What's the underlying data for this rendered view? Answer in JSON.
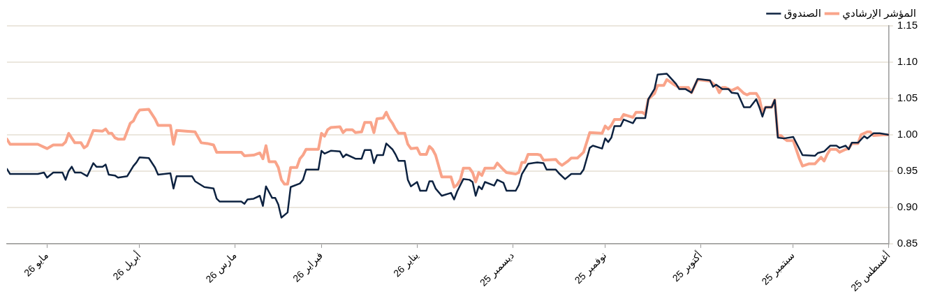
{
  "chart_data": {
    "type": "line",
    "legend": "top right",
    "grid": "y",
    "marker": "none",
    "line_style": "solid",
    "xlim": [
      "2026-05-14",
      "2025-08-01"
    ],
    "xticks": [
      {
        "value": "2025-08-01",
        "label": "أغسطس 25"
      },
      {
        "value": "2025-09-01",
        "label": "سبتمبر 25"
      },
      {
        "value": "2025-10-01",
        "label": "أكتوبر 25"
      },
      {
        "value": "2025-11-01",
        "label": "نوفمبر 25"
      },
      {
        "value": "2025-12-01",
        "label": "ديسمبر 25"
      },
      {
        "value": "2026-01-01",
        "label": "يناير 26"
      },
      {
        "value": "2026-02-01",
        "label": "فبراير 26"
      },
      {
        "value": "2026-03-01",
        "label": "مارس 26"
      },
      {
        "value": "2026-04-01",
        "label": "أبريل 26"
      },
      {
        "value": "2026-05-01",
        "label": "مايو 26"
      }
    ],
    "ylim": [
      0.85,
      1.15
    ],
    "yticks": [
      {
        "value": 0.85,
        "label": "0.85"
      },
      {
        "value": 0.9,
        "label": "0.90"
      },
      {
        "value": 0.95,
        "label": "0.95"
      },
      {
        "value": 1,
        "label": "1.00"
      },
      {
        "value": 1.05,
        "label": "1.05"
      },
      {
        "value": 1.1,
        "label": "1.10"
      },
      {
        "value": 1.15,
        "label": "1.15"
      }
    ],
    "series": [
      {
        "name": "الصندوق",
        "color": "#0d2240",
        "x": [
          "2025-08-01",
          "2025-08-04",
          "2025-08-06",
          "2025-08-08",
          "2025-08-09",
          "2025-08-11",
          "2025-08-13",
          "2025-08-14",
          "2025-08-15",
          "2025-08-17",
          "2025-08-18",
          "2025-08-20",
          "2025-08-22",
          "2025-08-24",
          "2025-08-25",
          "2025-08-29",
          "2025-09-01",
          "2025-09-04",
          "2025-09-06",
          "2025-09-07",
          "2025-09-08",
          "2025-09-10",
          "2025-09-11",
          "2025-09-12",
          "2025-09-13",
          "2025-09-15",
          "2025-09-17",
          "2025-09-19",
          "2025-09-21",
          "2025-09-22",
          "2025-09-24",
          "2025-09-26",
          "2025-09-27",
          "2025-09-28",
          "2025-10-02",
          "2025-10-04",
          "2025-10-06",
          "2025-10-08",
          "2025-10-09",
          "2025-10-12",
          "2025-10-15",
          "2025-10-16",
          "2025-10-18",
          "2025-10-19",
          "2025-10-22",
          "2025-10-23",
          "2025-10-26",
          "2025-10-27",
          "2025-10-29",
          "2025-10-30",
          "2025-10-31",
          "2025-11-01",
          "2025-11-02",
          "2025-11-05",
          "2025-11-06",
          "2025-11-08",
          "2025-11-09",
          "2025-11-12",
          "2025-11-14",
          "2025-11-16",
          "2025-11-17",
          "2025-11-20",
          "2025-11-21",
          "2025-11-23",
          "2025-11-26",
          "2025-11-28",
          "2025-11-29",
          "2025-11-30",
          "2025-12-03",
          "2025-12-04",
          "2025-12-06",
          "2025-12-07",
          "2025-12-10",
          "2025-12-11",
          "2025-12-12",
          "2025-12-13",
          "2025-12-14",
          "2025-12-15",
          "2025-12-17",
          "2025-12-19",
          "2025-12-20",
          "2025-12-21",
          "2025-12-24",
          "2025-12-26",
          "2025-12-27",
          "2025-12-28",
          "2025-12-29",
          "2025-12-31",
          "2026-01-01",
          "2026-01-03",
          "2026-01-04",
          "2026-01-05",
          "2026-01-07",
          "2026-01-08",
          "2026-01-09",
          "2026-01-11",
          "2026-01-12",
          "2026-01-14",
          "2026-01-15",
          "2026-01-16",
          "2026-01-18",
          "2026-01-19",
          "2026-01-21",
          "2026-01-24",
          "2026-01-25",
          "2026-01-26",
          "2026-01-29",
          "2026-01-31",
          "2026-02-01",
          "2026-02-02",
          "2026-02-06",
          "2026-02-07",
          "2026-02-08",
          "2026-02-11",
          "2026-02-12",
          "2026-02-14",
          "2026-02-15",
          "2026-02-16",
          "2026-02-17",
          "2026-02-19",
          "2026-02-20",
          "2026-02-21",
          "2026-02-23",
          "2026-02-25",
          "2026-02-26",
          "2026-02-27",
          "2026-03-06",
          "2026-03-07",
          "2026-03-08",
          "2026-03-11",
          "2026-03-14",
          "2026-03-15",
          "2026-03-20",
          "2026-03-21",
          "2026-03-22",
          "2026-03-26",
          "2026-03-27",
          "2026-03-29",
          "2026-04-01",
          "2026-04-02",
          "2026-04-03",
          "2026-04-05",
          "2026-04-08",
          "2026-04-09",
          "2026-04-11",
          "2026-04-12",
          "2026-04-13",
          "2026-04-15",
          "2026-04-16",
          "2026-04-18",
          "2026-04-20",
          "2026-04-22",
          "2026-04-23",
          "2026-04-24",
          "2026-04-25",
          "2026-04-26",
          "2026-04-29",
          "2026-05-01",
          "2026-05-02",
          "2026-05-04",
          "2026-05-13",
          "2026-05-14"
        ],
        "values": [
          1.0,
          1.002,
          1.002,
          0.995,
          0.998,
          0.989,
          0.989,
          0.98,
          0.985,
          0.982,
          0.985,
          0.985,
          0.977,
          0.975,
          0.971,
          0.972,
          0.997,
          0.995,
          0.996,
          1.048,
          1.038,
          1.038,
          1.025,
          1.038,
          1.049,
          1.038,
          1.038,
          1.057,
          1.058,
          1.063,
          1.063,
          1.069,
          1.066,
          1.075,
          1.077,
          1.058,
          1.063,
          1.063,
          1.07,
          1.084,
          1.083,
          1.063,
          1.049,
          1.023,
          1.023,
          1.016,
          1.021,
          1.012,
          1.012,
          0.996,
          0.99,
          0.995,
          0.981,
          0.985,
          0.982,
          0.952,
          0.946,
          0.946,
          0.939,
          0.947,
          0.952,
          0.952,
          0.961,
          0.962,
          0.96,
          0.946,
          0.931,
          0.923,
          0.923,
          0.934,
          0.938,
          0.93,
          0.935,
          0.925,
          0.929,
          0.916,
          0.935,
          0.938,
          0.939,
          0.922,
          0.911,
          0.92,
          0.916,
          0.926,
          0.936,
          0.936,
          0.923,
          0.923,
          0.935,
          0.929,
          0.938,
          0.964,
          0.964,
          0.973,
          0.98,
          0.988,
          0.972,
          0.972,
          0.961,
          0.979,
          0.979,
          0.967,
          0.967,
          0.973,
          0.969,
          0.977,
          0.978,
          0.974,
          0.978,
          0.952,
          0.952,
          0.938,
          0.933,
          0.928,
          0.893,
          0.886,
          0.904,
          0.913,
          0.913,
          0.929,
          0.902,
          0.916,
          0.912,
          0.911,
          0.905,
          0.908,
          0.908,
          0.912,
          0.926,
          0.928,
          0.936,
          0.943,
          0.943,
          0.926,
          0.947,
          0.945,
          0.955,
          0.968,
          0.969,
          0.962,
          0.957,
          0.943,
          0.941,
          0.944,
          0.945,
          0.959,
          0.956,
          0.956,
          0.961,
          0.943,
          0.948,
          0.948,
          0.956,
          0.95,
          0.938,
          0.948,
          0.948,
          0.941,
          0.948,
          0.946,
          0.946,
          0.953
        ]
      },
      {
        "name": "المؤشر الإرشادي",
        "color": "#f9a48a",
        "x": [
          "2025-08-01",
          "2025-08-03",
          "2025-08-06",
          "2025-08-07",
          "2025-08-08",
          "2025-08-10",
          "2025-08-11",
          "2025-08-13",
          "2025-08-14",
          "2025-08-15",
          "2025-08-17",
          "2025-08-18",
          "2025-08-20",
          "2025-08-21",
          "2025-08-22",
          "2025-08-23",
          "2025-08-25",
          "2025-08-27",
          "2025-08-29",
          "2025-08-30",
          "2025-09-01",
          "2025-09-03",
          "2025-09-04",
          "2025-09-05",
          "2025-09-06",
          "2025-09-07",
          "2025-09-08",
          "2025-09-10",
          "2025-09-11",
          "2025-09-12",
          "2025-09-13",
          "2025-09-15",
          "2025-09-16",
          "2025-09-17",
          "2025-09-19",
          "2025-09-21",
          "2025-09-23",
          "2025-09-24",
          "2025-09-25",
          "2025-09-26",
          "2025-09-28",
          "2025-10-02",
          "2025-10-04",
          "2025-10-05",
          "2025-10-08",
          "2025-10-10",
          "2025-10-12",
          "2025-10-13",
          "2025-10-15",
          "2025-10-16",
          "2025-10-18",
          "2025-10-19",
          "2025-10-20",
          "2025-10-22",
          "2025-10-23",
          "2025-10-26",
          "2025-10-27",
          "2025-10-29",
          "2025-10-30",
          "2025-10-31",
          "2025-11-01",
          "2025-11-02",
          "2025-11-06",
          "2025-11-08",
          "2025-11-10",
          "2025-11-12",
          "2025-11-13",
          "2025-11-15",
          "2025-11-16",
          "2025-11-17",
          "2025-11-21",
          "2025-11-22",
          "2025-11-23",
          "2025-11-26",
          "2025-11-27",
          "2025-11-28",
          "2025-11-29",
          "2025-11-30",
          "2025-12-03",
          "2025-12-04",
          "2025-12-06",
          "2025-12-07",
          "2025-12-10",
          "2025-12-11",
          "2025-12-12",
          "2025-12-13",
          "2025-12-14",
          "2025-12-15",
          "2025-12-17",
          "2025-12-18",
          "2025-12-19",
          "2025-12-20",
          "2025-12-21",
          "2025-12-24",
          "2025-12-26",
          "2025-12-27",
          "2025-12-28",
          "2025-12-29",
          "2025-12-31",
          "2026-01-01",
          "2026-01-03",
          "2026-01-04",
          "2026-01-05",
          "2026-01-07",
          "2026-01-08",
          "2026-01-09",
          "2026-01-10",
          "2026-01-11",
          "2026-01-12",
          "2026-01-14",
          "2026-01-15",
          "2026-01-16",
          "2026-01-18",
          "2026-01-19",
          "2026-01-21",
          "2026-01-22",
          "2026-01-24",
          "2026-01-25",
          "2026-01-26",
          "2026-01-29",
          "2026-01-30",
          "2026-01-31",
          "2026-02-01",
          "2026-02-02",
          "2026-02-06",
          "2026-02-07",
          "2026-02-08",
          "2026-02-09",
          "2026-02-11",
          "2026-02-12",
          "2026-02-13",
          "2026-02-14",
          "2026-02-15",
          "2026-02-16",
          "2026-02-18",
          "2026-02-19",
          "2026-02-20",
          "2026-02-21",
          "2026-02-23",
          "2026-02-26",
          "2026-02-27",
          "2026-03-07",
          "2026-03-08",
          "2026-03-10",
          "2026-03-12",
          "2026-03-14",
          "2026-03-17",
          "2026-03-20",
          "2026-03-21",
          "2026-03-22",
          "2026-03-26",
          "2026-03-27",
          "2026-03-29",
          "2026-04-01",
          "2026-04-02",
          "2026-04-03",
          "2026-04-04",
          "2026-04-06",
          "2026-04-08",
          "2026-04-09",
          "2026-04-10",
          "2026-04-11",
          "2026-04-12",
          "2026-04-13",
          "2026-04-16",
          "2026-04-18",
          "2026-04-19",
          "2026-04-20",
          "2026-04-22",
          "2026-04-24",
          "2026-04-25",
          "2026-04-26",
          "2026-04-29",
          "2026-05-01",
          "2026-05-02",
          "2026-05-04",
          "2026-05-13",
          "2026-05-14"
        ],
        "values": [
          1.0,
          1.0,
          0.999,
          1.004,
          1.004,
          1.0,
          0.988,
          0.988,
          0.981,
          0.98,
          0.976,
          0.98,
          0.98,
          0.973,
          0.964,
          0.969,
          0.96,
          0.96,
          0.957,
          0.967,
          0.992,
          0.992,
          0.995,
          0.999,
          0.999,
          1.048,
          1.038,
          1.038,
          1.031,
          1.05,
          1.057,
          1.057,
          1.055,
          1.057,
          1.065,
          1.061,
          1.065,
          1.065,
          1.058,
          1.067,
          1.074,
          1.076,
          1.058,
          1.065,
          1.065,
          1.07,
          1.076,
          1.068,
          1.068,
          1.057,
          1.049,
          1.028,
          1.031,
          1.031,
          1.024,
          1.028,
          1.021,
          1.021,
          1.013,
          1.008,
          1.012,
          1.002,
          1.003,
          0.976,
          0.968,
          0.968,
          0.964,
          0.958,
          0.961,
          0.966,
          0.965,
          0.972,
          0.973,
          0.973,
          0.962,
          0.962,
          0.948,
          0.946,
          0.948,
          0.952,
          0.961,
          0.954,
          0.954,
          0.944,
          0.948,
          0.935,
          0.948,
          0.954,
          0.954,
          0.938,
          0.931,
          0.928,
          0.942,
          0.942,
          0.972,
          0.98,
          0.984,
          0.973,
          0.973,
          0.982,
          0.981,
          0.987,
          1.002,
          1.002,
          1.008,
          1.016,
          1.022,
          1.031,
          1.023,
          1.022,
          1.003,
          1.017,
          1.017,
          1.004,
          1.003,
          1.007,
          1.007,
          1.003,
          1.011,
          1.01,
          1.007,
          0.998,
          1.002,
          0.98,
          0.98,
          0.972,
          0.967,
          0.955,
          0.955,
          0.932,
          0.932,
          0.938,
          0.955,
          0.963,
          0.963,
          0.985,
          0.967,
          0.975,
          0.972,
          0.971,
          0.976,
          0.976,
          0.986,
          0.988,
          0.989,
          1.004,
          1.005,
          1.006,
          0.987,
          1.013,
          1.013,
          1.022,
          1.035,
          1.034,
          1.028,
          1.019,
          1.016,
          0.994,
          0.994,
          0.996,
          1.002,
          1.002,
          1.008,
          1.005,
          1.006,
          0.985,
          0.982,
          0.989,
          0.989,
          1.002,
          0.99,
          0.986,
          0.986,
          0.981,
          0.983,
          0.987,
          0.987,
          0.994
        ]
      }
    ]
  }
}
